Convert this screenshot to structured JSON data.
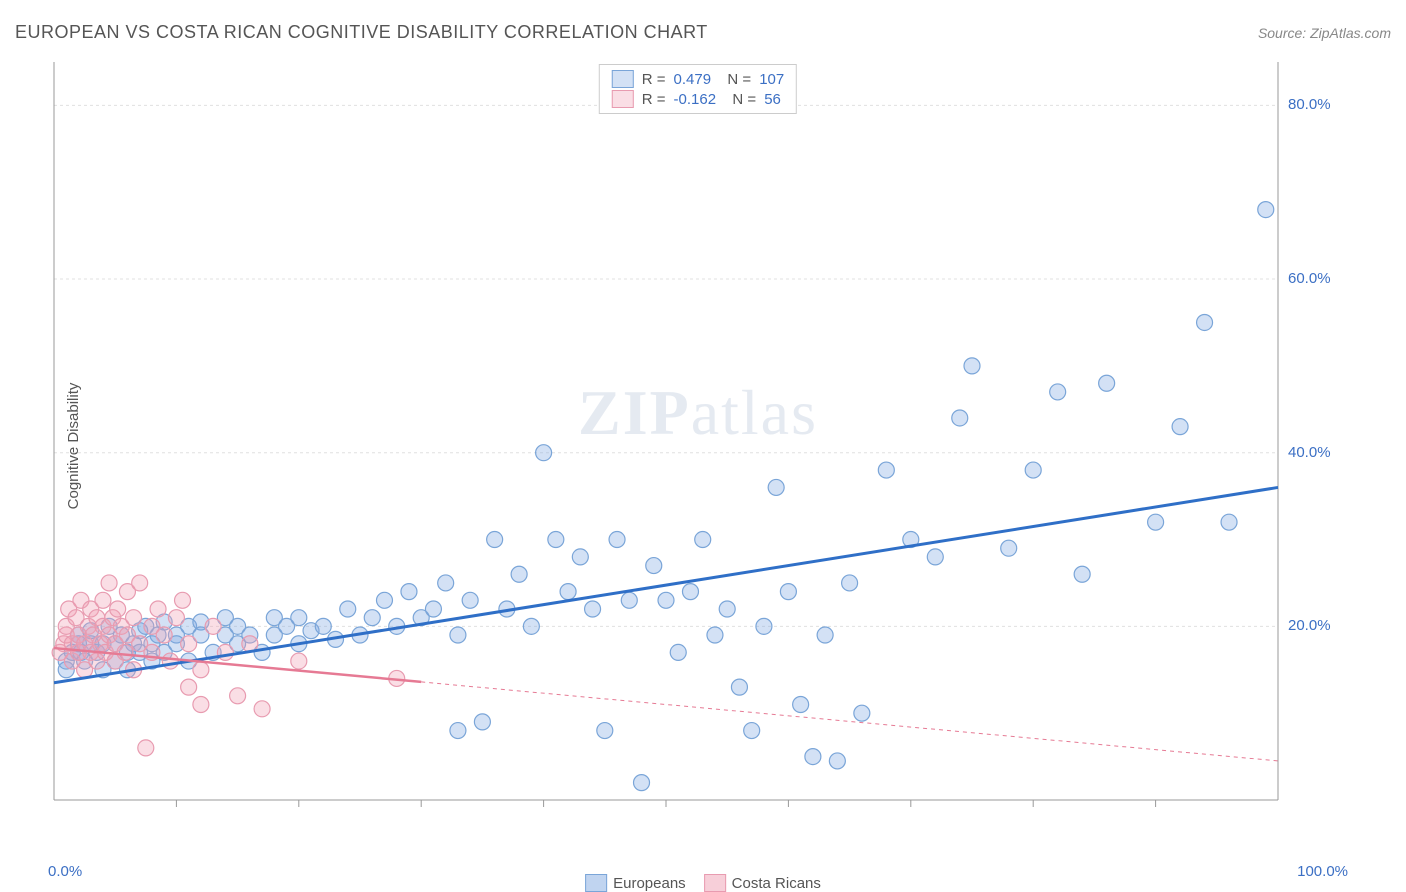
{
  "title": "EUROPEAN VS COSTA RICAN COGNITIVE DISABILITY CORRELATION CHART",
  "source_label": "Source: ZipAtlas.com",
  "ylabel": "Cognitive Disability",
  "watermark": "ZIPatlas",
  "chart": {
    "type": "scatter",
    "xlim": [
      0,
      100
    ],
    "ylim": [
      0,
      85
    ],
    "x_axis_min_label": "0.0%",
    "x_axis_max_label": "100.0%",
    "y_ticks": [
      20,
      40,
      60,
      80
    ],
    "y_tick_labels": [
      "20.0%",
      "40.0%",
      "60.0%",
      "80.0%"
    ],
    "x_ticks_minor": [
      10,
      20,
      30,
      40,
      50,
      60,
      70,
      80,
      90
    ],
    "grid_color": "#e0e0e0",
    "grid_dash": "3,3",
    "axis_color": "#999999",
    "background_color": "#ffffff",
    "marker_radius": 8,
    "marker_stroke_width": 1.2,
    "series": [
      {
        "name": "Europeans",
        "fill_color": "rgba(130,170,225,0.35)",
        "stroke_color": "#7aa5d8",
        "trend_color": "#2f6fc7",
        "trend_width": 3,
        "trend_dash": "none",
        "r": "0.479",
        "n": "107",
        "trend_line": {
          "x1": 0,
          "y1": 13.5,
          "x2": 100,
          "y2": 36.0
        },
        "points": [
          [
            1,
            15
          ],
          [
            1,
            16
          ],
          [
            1.5,
            17
          ],
          [
            2,
            18
          ],
          [
            2,
            19
          ],
          [
            2.2,
            17
          ],
          [
            2.5,
            16
          ],
          [
            3,
            18
          ],
          [
            3,
            19.5
          ],
          [
            3.5,
            17
          ],
          [
            4,
            15
          ],
          [
            4,
            18
          ],
          [
            4.5,
            20
          ],
          [
            5,
            16
          ],
          [
            5,
            18
          ],
          [
            5.5,
            19
          ],
          [
            6,
            17
          ],
          [
            6,
            15
          ],
          [
            6.5,
            18
          ],
          [
            7,
            19.5
          ],
          [
            7,
            17
          ],
          [
            7.5,
            20
          ],
          [
            8,
            18
          ],
          [
            8,
            16
          ],
          [
            8.5,
            19
          ],
          [
            9,
            20.5
          ],
          [
            9,
            17
          ],
          [
            10,
            19
          ],
          [
            10,
            18
          ],
          [
            11,
            20
          ],
          [
            11,
            16
          ],
          [
            12,
            19
          ],
          [
            12,
            20.5
          ],
          [
            13,
            17
          ],
          [
            14,
            19
          ],
          [
            14,
            21
          ],
          [
            15,
            18
          ],
          [
            15,
            20
          ],
          [
            16,
            19
          ],
          [
            17,
            17
          ],
          [
            18,
            21
          ],
          [
            18,
            19
          ],
          [
            19,
            20
          ],
          [
            20,
            18
          ],
          [
            20,
            21
          ],
          [
            21,
            19.5
          ],
          [
            22,
            20
          ],
          [
            23,
            18.5
          ],
          [
            24,
            22
          ],
          [
            25,
            19
          ],
          [
            26,
            21
          ],
          [
            27,
            23
          ],
          [
            28,
            20
          ],
          [
            29,
            24
          ],
          [
            30,
            21
          ],
          [
            31,
            22
          ],
          [
            32,
            25
          ],
          [
            33,
            19
          ],
          [
            33,
            8
          ],
          [
            34,
            23
          ],
          [
            35,
            9
          ],
          [
            36,
            30
          ],
          [
            37,
            22
          ],
          [
            38,
            26
          ],
          [
            39,
            20
          ],
          [
            40,
            40
          ],
          [
            41,
            30
          ],
          [
            42,
            24
          ],
          [
            43,
            28
          ],
          [
            44,
            22
          ],
          [
            45,
            8
          ],
          [
            46,
            30
          ],
          [
            47,
            23
          ],
          [
            48,
            2
          ],
          [
            49,
            27
          ],
          [
            50,
            23
          ],
          [
            51,
            17
          ],
          [
            52,
            24
          ],
          [
            53,
            30
          ],
          [
            54,
            19
          ],
          [
            55,
            22
          ],
          [
            56,
            13
          ],
          [
            57,
            8
          ],
          [
            58,
            20
          ],
          [
            59,
            36
          ],
          [
            60,
            24
          ],
          [
            61,
            11
          ],
          [
            62,
            5
          ],
          [
            63,
            19
          ],
          [
            64,
            4.5
          ],
          [
            65,
            25
          ],
          [
            66,
            10
          ],
          [
            68,
            38
          ],
          [
            70,
            30
          ],
          [
            72,
            28
          ],
          [
            74,
            44
          ],
          [
            75,
            50
          ],
          [
            78,
            29
          ],
          [
            80,
            38
          ],
          [
            82,
            47
          ],
          [
            84,
            26
          ],
          [
            86,
            48
          ],
          [
            90,
            32
          ],
          [
            92,
            43
          ],
          [
            94,
            55
          ],
          [
            96,
            32
          ],
          [
            99,
            68
          ]
        ]
      },
      {
        "name": "Costa Ricans",
        "fill_color": "rgba(240,160,180,0.35)",
        "stroke_color": "#e89bb0",
        "trend_color": "#e67a94",
        "trend_width": 2.5,
        "trend_dash_solid_until_x": 30,
        "trend_dash": "4,4",
        "r": "-0.162",
        "n": "56",
        "trend_line": {
          "x1": 0,
          "y1": 17.5,
          "x2": 100,
          "y2": 4.5
        },
        "points": [
          [
            0.5,
            17
          ],
          [
            0.8,
            18
          ],
          [
            1,
            19
          ],
          [
            1,
            20
          ],
          [
            1.2,
            22
          ],
          [
            1.5,
            16
          ],
          [
            1.5,
            18
          ],
          [
            1.8,
            21
          ],
          [
            2,
            17
          ],
          [
            2,
            19
          ],
          [
            2.2,
            23
          ],
          [
            2.5,
            18
          ],
          [
            2.5,
            15
          ],
          [
            2.8,
            20
          ],
          [
            3,
            22
          ],
          [
            3,
            17
          ],
          [
            3.2,
            19
          ],
          [
            3.5,
            21
          ],
          [
            3.5,
            16
          ],
          [
            3.8,
            18
          ],
          [
            4,
            23
          ],
          [
            4,
            20
          ],
          [
            4.2,
            17
          ],
          [
            4.5,
            19
          ],
          [
            4.5,
            25
          ],
          [
            4.8,
            21
          ],
          [
            5,
            16
          ],
          [
            5,
            18
          ],
          [
            5.2,
            22
          ],
          [
            5.5,
            20
          ],
          [
            5.8,
            17
          ],
          [
            6,
            24
          ],
          [
            6,
            19
          ],
          [
            6.5,
            21
          ],
          [
            6.5,
            15
          ],
          [
            7,
            18
          ],
          [
            7,
            25
          ],
          [
            7.5,
            6
          ],
          [
            8,
            20
          ],
          [
            8,
            17
          ],
          [
            8.5,
            22
          ],
          [
            9,
            19
          ],
          [
            9.5,
            16
          ],
          [
            10,
            21
          ],
          [
            10.5,
            23
          ],
          [
            11,
            18
          ],
          [
            11,
            13
          ],
          [
            12,
            15
          ],
          [
            12,
            11
          ],
          [
            13,
            20
          ],
          [
            14,
            17
          ],
          [
            15,
            12
          ],
          [
            16,
            18
          ],
          [
            17,
            10.5
          ],
          [
            20,
            16
          ],
          [
            28,
            14
          ]
        ]
      }
    ]
  },
  "legend_bottom": [
    {
      "label": "Europeans",
      "fill": "rgba(130,170,225,0.5)",
      "stroke": "#7aa5d8"
    },
    {
      "label": "Costa Ricans",
      "fill": "rgba(240,160,180,0.5)",
      "stroke": "#e89bb0"
    }
  ]
}
